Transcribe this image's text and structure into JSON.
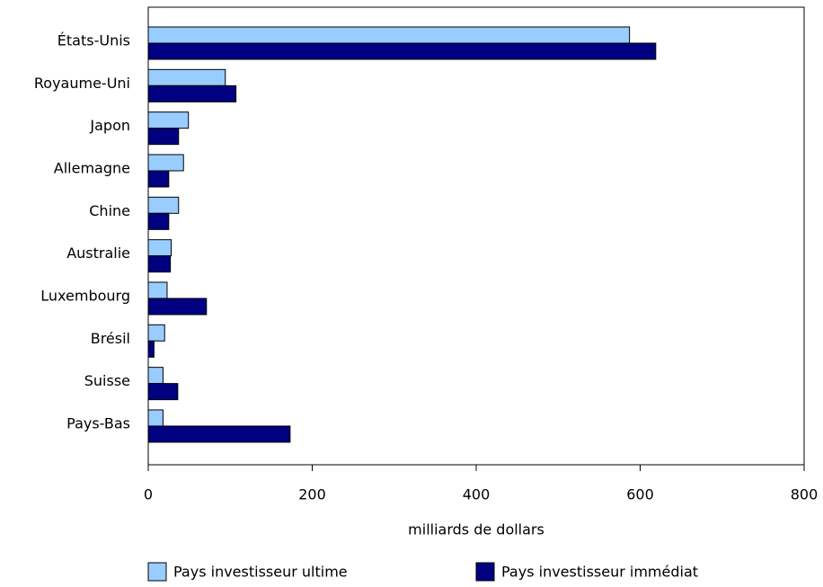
{
  "chart_data": {
    "type": "bar",
    "orientation": "horizontal",
    "categories": [
      "États-Unis",
      "Royaume-Uni",
      "Japon",
      "Allemagne",
      "Chine",
      "Australie",
      "Luxembourg",
      "Brésil",
      "Suisse",
      "Pays-Bas"
    ],
    "series": [
      {
        "name": "Pays investisseur ultime",
        "color": "#99ccff",
        "values": [
          587,
          94,
          49,
          43,
          37,
          28,
          23,
          20,
          18,
          18
        ]
      },
      {
        "name": "Pays investisseur immédiat",
        "color": "#000080",
        "values": [
          619,
          107,
          37,
          25,
          25,
          27,
          71,
          7,
          36,
          173
        ]
      }
    ],
    "xlabel": "milliards de dollars",
    "xlim": [
      0,
      800
    ],
    "xticks": [
      0,
      200,
      400,
      600,
      800
    ],
    "grid": false,
    "legend": "bottom"
  }
}
